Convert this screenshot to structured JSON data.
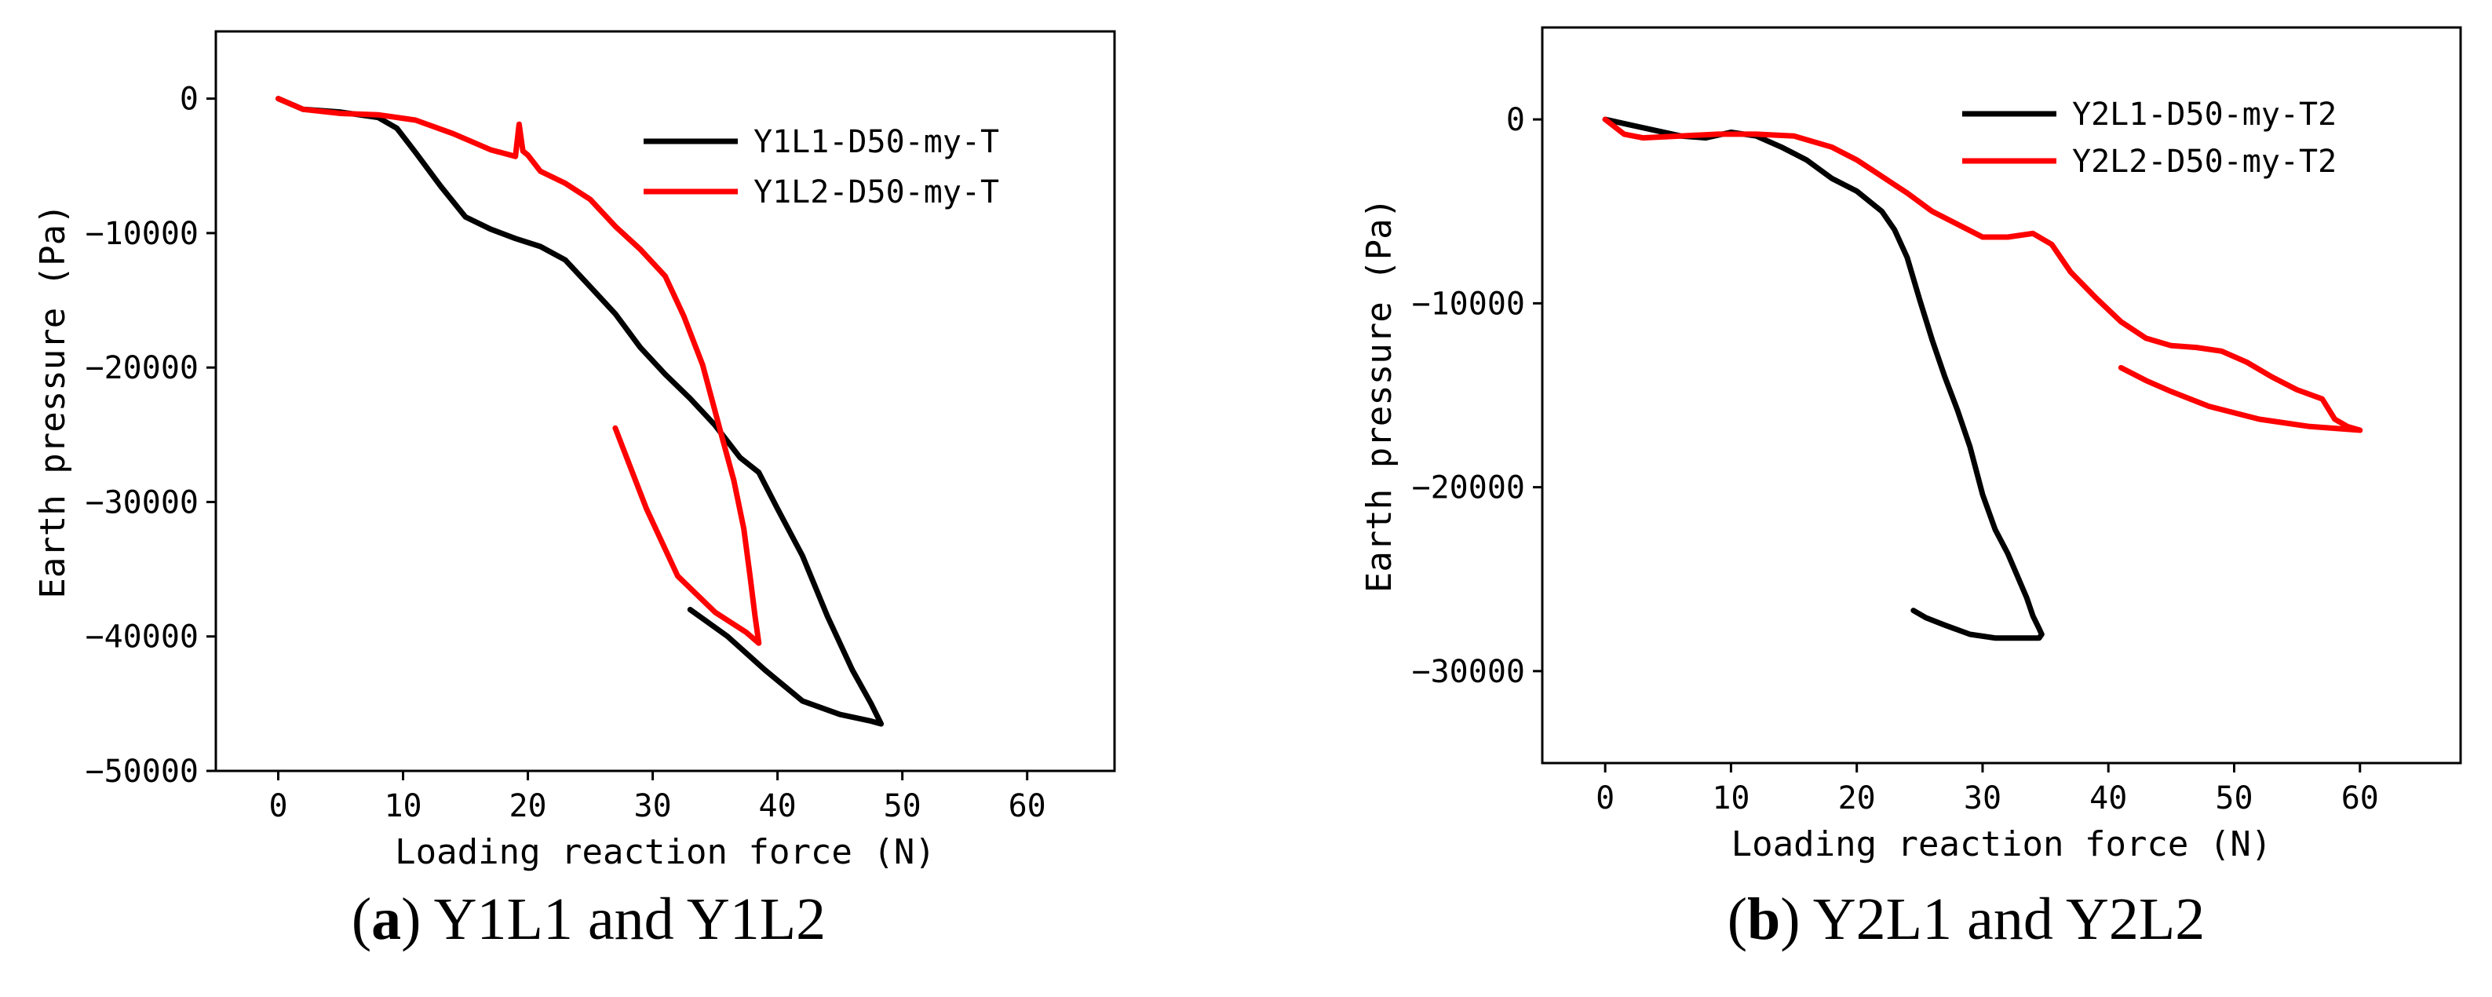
{
  "chart_data": [
    {
      "type": "line",
      "panel": "a",
      "caption_letter": "a",
      "caption_text": "Y1L1 and Y1L2",
      "xlabel": "Loading reaction force (N)",
      "ylabel": "Earth pressure (Pa)",
      "xlim": [
        -5,
        67
      ],
      "ylim": [
        -50000,
        5000
      ],
      "xticks": [
        0,
        10,
        20,
        30,
        40,
        50,
        60
      ],
      "yticks": [
        0,
        -10000,
        -20000,
        -30000,
        -40000,
        -50000
      ],
      "legend_position": "top-right",
      "series": [
        {
          "name": "Y1L1-D50-my-T",
          "color": "#000000",
          "x": [
            0,
            2,
            5,
            8,
            9.5,
            11,
            13,
            15,
            17,
            19,
            21,
            23,
            25,
            27,
            29,
            31,
            33,
            35,
            37,
            38.5,
            40,
            42,
            44,
            46,
            47.5,
            48.3,
            47.5,
            45,
            42,
            39,
            36,
            33
          ],
          "y": [
            0,
            -800,
            -1000,
            -1400,
            -2200,
            -4000,
            -6500,
            -8800,
            -9700,
            -10400,
            -11000,
            -12000,
            -14000,
            -16000,
            -18500,
            -20500,
            -22300,
            -24300,
            -26700,
            -27800,
            -30500,
            -34000,
            -38500,
            -42500,
            -45000,
            -46500,
            -46300,
            -45800,
            -44800,
            -42500,
            -40000,
            -38000
          ]
        },
        {
          "name": "Y1L2-D50-my-T",
          "color": "#ff0000",
          "x": [
            0,
            2,
            5,
            8,
            11,
            14,
            17,
            19,
            19.3,
            19.6,
            20,
            21,
            23,
            25,
            27,
            29,
            31,
            32.5,
            34,
            35.5,
            36.5,
            37.3,
            37.8,
            38.2,
            38.5,
            37.5,
            35,
            32,
            29.5,
            27
          ],
          "y": [
            0,
            -800,
            -1100,
            -1200,
            -1600,
            -2600,
            -3800,
            -4300,
            -1900,
            -3900,
            -4200,
            -5400,
            -6300,
            -7500,
            -9500,
            -11200,
            -13200,
            -16200,
            -19800,
            -25000,
            -28400,
            -32000,
            -35500,
            -38500,
            -40500,
            -39700,
            -38200,
            -35500,
            -30500,
            -24500
          ]
        }
      ]
    },
    {
      "type": "line",
      "panel": "b",
      "caption_letter": "b",
      "caption_text": "Y2L1 and Y2L2",
      "xlabel": "Loading reaction force (N)",
      "ylabel": "Earth pressure (Pa)",
      "xlim": [
        -5,
        68
      ],
      "ylim": [
        -35000,
        5000
      ],
      "xticks": [
        0,
        10,
        20,
        30,
        40,
        50,
        60
      ],
      "yticks": [
        0,
        -10000,
        -20000,
        -30000
      ],
      "legend_position": "top-right",
      "series": [
        {
          "name": "Y2L1-D50-my-T2",
          "color": "#000000",
          "x": [
            0,
            2,
            4,
            6,
            8,
            10,
            12,
            14,
            16,
            18,
            20,
            22,
            23,
            24,
            25,
            26,
            27,
            28,
            29,
            30,
            31,
            32,
            33,
            33.5,
            34,
            34.5,
            34.7,
            34.5,
            33,
            31,
            29,
            27,
            25.5,
            24.5
          ],
          "y": [
            0,
            -300,
            -600,
            -900,
            -1000,
            -700,
            -900,
            -1500,
            -2200,
            -3200,
            -3900,
            -5000,
            -6000,
            -7500,
            -9800,
            -12000,
            -14000,
            -15800,
            -17800,
            -20400,
            -22300,
            -23600,
            -25200,
            -26000,
            -27000,
            -27700,
            -28000,
            -28200,
            -28200,
            -28200,
            -28000,
            -27500,
            -27100,
            -26700
          ]
        },
        {
          "name": "Y2L2-D50-my-T2",
          "color": "#ff0000",
          "x": [
            0,
            1.5,
            3,
            6,
            9,
            12,
            15,
            18,
            20,
            22,
            24,
            26,
            28,
            30,
            32,
            34,
            35.5,
            37,
            39,
            41,
            43,
            45,
            47,
            49,
            51,
            53,
            55,
            57,
            58,
            59,
            60,
            56,
            52,
            48,
            45,
            43,
            41
          ],
          "y": [
            0,
            -800,
            -1000,
            -900,
            -800,
            -800,
            -900,
            -1500,
            -2200,
            -3100,
            -4000,
            -5000,
            -5700,
            -6400,
            -6400,
            -6200,
            -6800,
            -8300,
            -9700,
            -11000,
            -11900,
            -12300,
            -12400,
            -12600,
            -13200,
            -14000,
            -14700,
            -15200,
            -16300,
            -16700,
            -16900,
            -16700,
            -16300,
            -15600,
            -14800,
            -14200,
            -13500
          ]
        }
      ]
    }
  ]
}
